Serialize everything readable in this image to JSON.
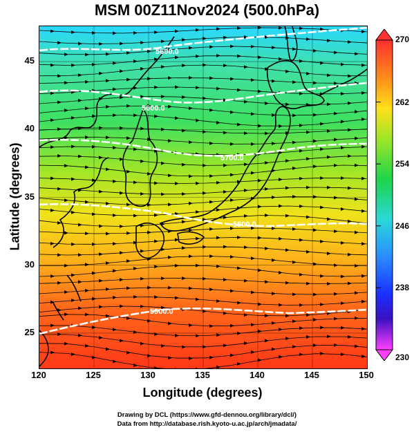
{
  "title": "MSM 00Z11Nov2024 (500.0hPa)",
  "xlabel": "Longitude (degrees)",
  "ylabel": "Latitude  (degrees)",
  "x_ticks": [
    "120",
    "125",
    "130",
    "135",
    "140",
    "145",
    "150"
  ],
  "y_ticks": [
    "25",
    "30",
    "35",
    "40",
    "45"
  ],
  "colorbar": {
    "min": 230,
    "max": 270,
    "labels": [
      "270",
      "262",
      "254",
      "246",
      "238",
      "230"
    ]
  },
  "contour_labels": [
    "5600.0",
    "5600.0",
    "5700.0",
    "5800.0",
    "5900.0"
  ],
  "colors": {
    "warm": "#ff3b1a",
    "cool": "#2ad6ff",
    "contour": "#ffffff"
  },
  "credit_line1": "Drawing by DCL (https://www.gfd-dennou.org/library/dcl/)",
  "credit_line2": "Data from http://database.rish.kyoto-u.ac.jp/arch/jmadata/"
}
